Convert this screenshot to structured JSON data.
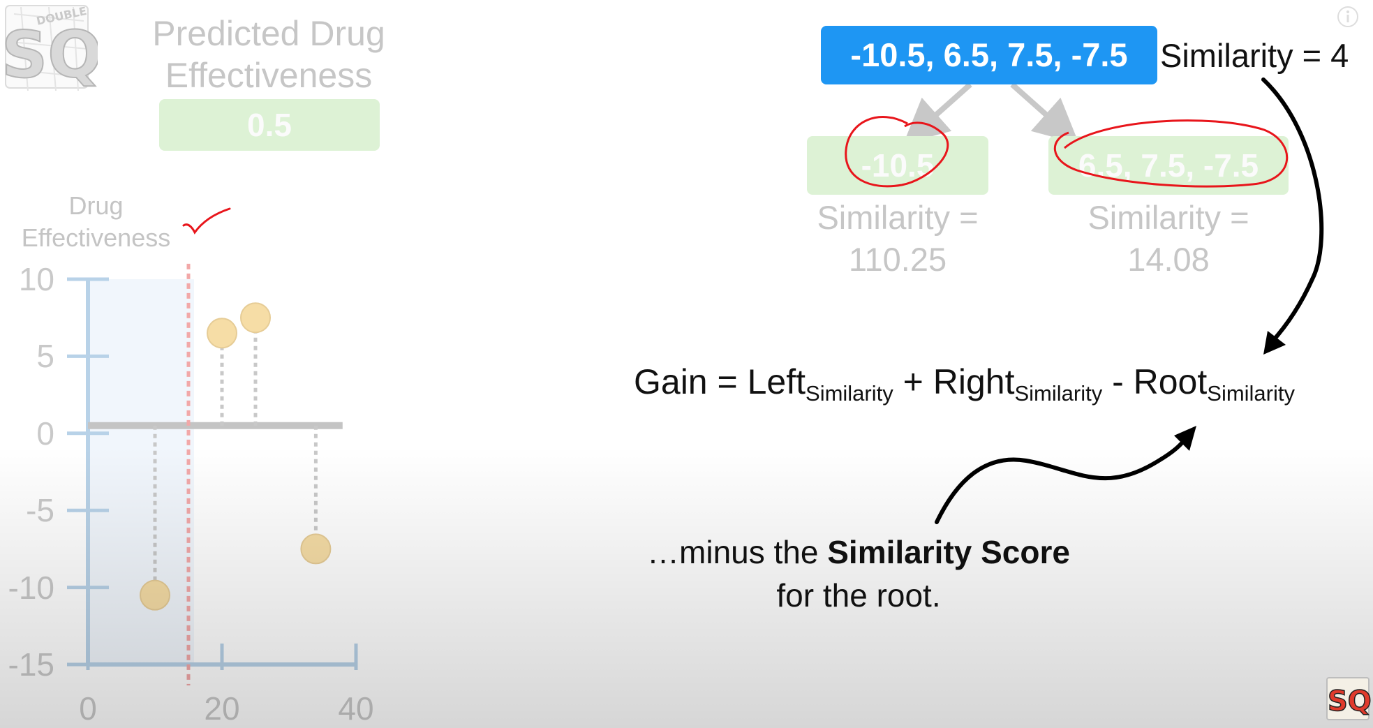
{
  "predicted": {
    "title_line1": "Predicted Drug",
    "title_line2": "Effectiveness",
    "value": "0.5"
  },
  "tree": {
    "root": {
      "residuals": "-10.5, 6.5, 7.5, -7.5",
      "similarity": "Similarity = 4"
    },
    "left_leaf": {
      "residuals": "-10.5",
      "similarity_line1": "Similarity =",
      "similarity_line2": "110.25"
    },
    "right_leaf": {
      "residuals": "6.5, 7.5, -7.5",
      "similarity_line1": "Similarity =",
      "similarity_line2": "14.08"
    }
  },
  "formula": {
    "gain": "Gain",
    "eq": " = ",
    "left": "Left",
    "plus": " + ",
    "right": "Right",
    "minus": " - ",
    "root": "Root",
    "sub": "Similarity"
  },
  "caption": {
    "prefix": "…minus the ",
    "bold": "Similarity Score",
    "line2": "for the root."
  },
  "logo": {
    "text": "SQ!",
    "banner": "DOUBLE BAM!!!"
  },
  "chart_data": {
    "type": "scatter",
    "title": "",
    "ylabel_line1": "Drug",
    "ylabel_line2": "Effectiveness",
    "xlabel": "",
    "xlim": [
      0,
      40
    ],
    "ylim": [
      -15,
      10
    ],
    "x_ticks": [
      "0",
      "20",
      "40"
    ],
    "y_ticks": [
      "10",
      "5",
      "0",
      "-5",
      "-10",
      "-15"
    ],
    "prediction_line_y": 0.5,
    "split_threshold_x": 15,
    "points": [
      {
        "x": 10,
        "y": -10.5
      },
      {
        "x": 20,
        "y": 6.5
      },
      {
        "x": 25,
        "y": 7.5
      },
      {
        "x": 34,
        "y": -7.5
      }
    ],
    "point_color": "#f6dda6",
    "split_color": "#f2a8a8",
    "axis_color": "#b8d2e8"
  },
  "colors": {
    "root_box": "#1e96f3",
    "leaf_box": "#ddf2d5",
    "annotation_red": "#e8151b"
  }
}
